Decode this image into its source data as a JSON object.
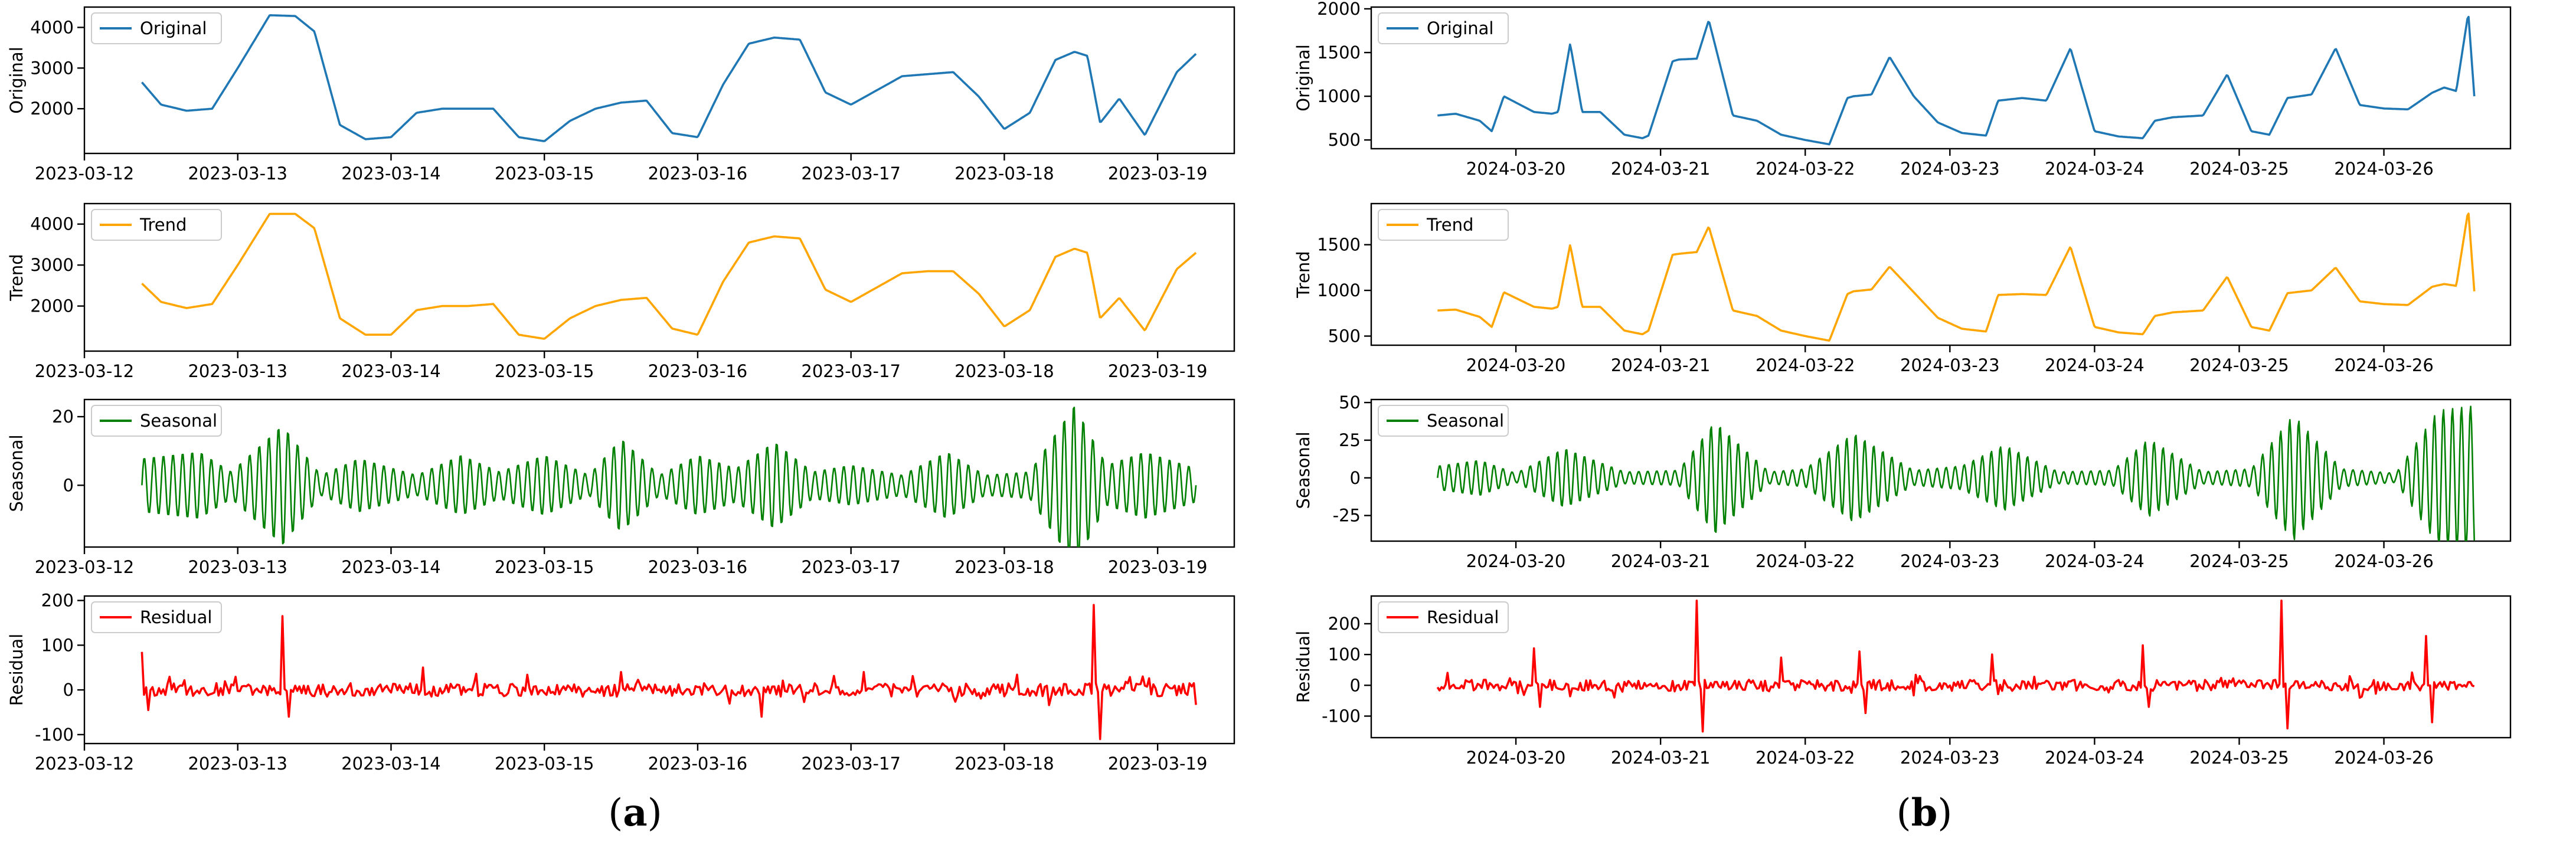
{
  "panels": [
    {
      "label": "a"
    },
    {
      "label": "b"
    }
  ],
  "chart_data": [
    {
      "type": "line",
      "panel": "a",
      "legend": "upper-left",
      "grid": false,
      "title": "",
      "xlabel": "",
      "ylabel": "Original",
      "series_name": "Original",
      "color": "#1f77b4",
      "xlim": [
        "2023-03-12 00:00",
        "2023-03-19 12:00"
      ],
      "ylim": [
        900,
        4500
      ],
      "x_ticks": [
        "2023-03-12",
        "2023-03-13",
        "2023-03-14",
        "2023-03-15",
        "2023-03-16",
        "2023-03-17",
        "2023-03-18",
        "2023-03-19"
      ],
      "y_ticks": [
        2000,
        3000,
        4000
      ],
      "x": [
        "2023-03-12 09:00",
        "2023-03-12 12:00",
        "2023-03-12 16:00",
        "2023-03-12 20:00",
        "2023-03-13 00:00",
        "2023-03-13 05:00",
        "2023-03-13 09:00",
        "2023-03-13 12:00",
        "2023-03-13 16:00",
        "2023-03-13 20:00",
        "2023-03-14 00:00",
        "2023-03-14 04:00",
        "2023-03-14 08:00",
        "2023-03-14 12:00",
        "2023-03-14 16:00",
        "2023-03-14 20:00",
        "2023-03-15 00:00",
        "2023-03-15 04:00",
        "2023-03-15 08:00",
        "2023-03-15 12:00",
        "2023-03-15 16:00",
        "2023-03-15 20:00",
        "2023-03-16 00:00",
        "2023-03-16 04:00",
        "2023-03-16 08:00",
        "2023-03-16 12:00",
        "2023-03-16 16:00",
        "2023-03-16 20:00",
        "2023-03-17 00:00",
        "2023-03-17 04:00",
        "2023-03-17 08:00",
        "2023-03-17 12:00",
        "2023-03-17 16:00",
        "2023-03-17 20:00",
        "2023-03-18 00:00",
        "2023-03-18 04:00",
        "2023-03-18 08:00",
        "2023-03-18 11:00",
        "2023-03-18 13:00",
        "2023-03-18 15:00",
        "2023-03-18 18:00",
        "2023-03-18 22:00",
        "2023-03-19 03:00",
        "2023-03-19 06:00"
      ],
      "values": [
        2650,
        2100,
        1950,
        2000,
        3000,
        4300,
        4280,
        3900,
        1600,
        1250,
        1300,
        1900,
        2000,
        2000,
        2000,
        1300,
        1200,
        1700,
        2000,
        2150,
        2200,
        1400,
        1300,
        2600,
        3600,
        3750,
        3700,
        2400,
        2100,
        2450,
        2800,
        2850,
        2900,
        2300,
        1500,
        1900,
        3200,
        3400,
        3300,
        1650,
        2250,
        1350,
        2900,
        3350
      ]
    },
    {
      "type": "line",
      "panel": "a",
      "legend": "upper-left",
      "grid": false,
      "title": "",
      "xlabel": "",
      "ylabel": "Trend",
      "series_name": "Trend",
      "color": "#ffa500",
      "xlim": [
        "2023-03-12 00:00",
        "2023-03-19 12:00"
      ],
      "ylim": [
        900,
        4500
      ],
      "x_ticks": [
        "2023-03-12",
        "2023-03-13",
        "2023-03-14",
        "2023-03-15",
        "2023-03-16",
        "2023-03-17",
        "2023-03-18",
        "2023-03-19"
      ],
      "y_ticks": [
        2000,
        3000,
        4000
      ],
      "x": [
        "2023-03-12 09:00",
        "2023-03-12 12:00",
        "2023-03-12 16:00",
        "2023-03-12 20:00",
        "2023-03-13 00:00",
        "2023-03-13 05:00",
        "2023-03-13 09:00",
        "2023-03-13 12:00",
        "2023-03-13 16:00",
        "2023-03-13 20:00",
        "2023-03-14 00:00",
        "2023-03-14 04:00",
        "2023-03-14 08:00",
        "2023-03-14 12:00",
        "2023-03-14 16:00",
        "2023-03-14 20:00",
        "2023-03-15 00:00",
        "2023-03-15 04:00",
        "2023-03-15 08:00",
        "2023-03-15 12:00",
        "2023-03-15 16:00",
        "2023-03-15 20:00",
        "2023-03-16 00:00",
        "2023-03-16 04:00",
        "2023-03-16 08:00",
        "2023-03-16 12:00",
        "2023-03-16 16:00",
        "2023-03-16 20:00",
        "2023-03-17 00:00",
        "2023-03-17 04:00",
        "2023-03-17 08:00",
        "2023-03-17 12:00",
        "2023-03-17 16:00",
        "2023-03-17 20:00",
        "2023-03-18 00:00",
        "2023-03-18 04:00",
        "2023-03-18 08:00",
        "2023-03-18 11:00",
        "2023-03-18 13:00",
        "2023-03-18 15:00",
        "2023-03-18 18:00",
        "2023-03-18 22:00",
        "2023-03-19 03:00",
        "2023-03-19 06:00"
      ],
      "values": [
        2550,
        2100,
        1950,
        2050,
        3000,
        4250,
        4250,
        3900,
        1700,
        1300,
        1300,
        1900,
        2000,
        2000,
        2050,
        1300,
        1200,
        1700,
        2000,
        2150,
        2200,
        1450,
        1300,
        2600,
        3550,
        3700,
        3650,
        2400,
        2100,
        2450,
        2800,
        2850,
        2850,
        2300,
        1500,
        1900,
        3200,
        3400,
        3300,
        1700,
        2200,
        1400,
        2900,
        3300
      ]
    },
    {
      "type": "line",
      "panel": "a",
      "legend": "upper-left",
      "grid": false,
      "style": "oscillation",
      "title": "",
      "xlabel": "",
      "ylabel": "Seasonal",
      "series_name": "Seasonal",
      "color": "#008000",
      "xlim": [
        "2023-03-12 00:00",
        "2023-03-19 12:00"
      ],
      "ylim": [
        -18,
        25
      ],
      "x_ticks": [
        "2023-03-12",
        "2023-03-13",
        "2023-03-14",
        "2023-03-15",
        "2023-03-16",
        "2023-03-17",
        "2023-03-18",
        "2023-03-19"
      ],
      "y_ticks": [
        0,
        20
      ],
      "cycle_hours": 1.5,
      "x": [
        "2023-03-12 09:00",
        "2023-03-12 18:00",
        "2023-03-12 23:00",
        "2023-03-13 07:00",
        "2023-03-13 13:00",
        "2023-03-13 19:00",
        "2023-03-14 04:00",
        "2023-03-14 11:00",
        "2023-03-14 17:00",
        "2023-03-15 00:00",
        "2023-03-15 07:00",
        "2023-03-15 12:00",
        "2023-03-15 18:00",
        "2023-03-16 00:00",
        "2023-03-16 06:00",
        "2023-03-16 12:00",
        "2023-03-16 18:00",
        "2023-03-17 00:00",
        "2023-03-17 08:00",
        "2023-03-17 15:00",
        "2023-03-17 21:00",
        "2023-03-18 04:00",
        "2023-03-18 11:00",
        "2023-03-18 16:00",
        "2023-03-18 22:00",
        "2023-03-19 06:00"
      ],
      "amplitudes": [
        8,
        10,
        4,
        18,
        3,
        8,
        3,
        9,
        4,
        9,
        3,
        14,
        3,
        9,
        5,
        13,
        4,
        6,
        3,
        10,
        3,
        4,
        24,
        6,
        10,
        5
      ]
    },
    {
      "type": "line",
      "panel": "a",
      "legend": "upper-left",
      "grid": false,
      "style": "noise",
      "title": "",
      "xlabel": "",
      "ylabel": "Residual",
      "series_name": "Residual",
      "color": "#ff0000",
      "xlim": [
        "2023-03-12 00:00",
        "2023-03-19 12:00"
      ],
      "ylim": [
        -120,
        210
      ],
      "x_ticks": [
        "2023-03-12",
        "2023-03-13",
        "2023-03-14",
        "2023-03-15",
        "2023-03-16",
        "2023-03-17",
        "2023-03-18",
        "2023-03-19"
      ],
      "y_ticks": [
        -100,
        0,
        100,
        200
      ],
      "x_range": [
        "2023-03-12 09:00",
        "2023-03-19 06:00"
      ],
      "noise_amplitude": 15,
      "spikes": [
        {
          "x": "2023-03-12 09:00",
          "value": 85
        },
        {
          "x": "2023-03-12 10:00",
          "value": -45
        },
        {
          "x": "2023-03-13 07:00",
          "value": 165
        },
        {
          "x": "2023-03-13 08:00",
          "value": -60
        },
        {
          "x": "2023-03-14 05:00",
          "value": 50
        },
        {
          "x": "2023-03-15 12:00",
          "value": 40
        },
        {
          "x": "2023-03-16 10:00",
          "value": -60
        },
        {
          "x": "2023-03-17 02:00",
          "value": 40
        },
        {
          "x": "2023-03-18 14:00",
          "value": 190
        },
        {
          "x": "2023-03-18 15:00",
          "value": -110
        }
      ]
    },
    {
      "type": "line",
      "panel": "b",
      "legend": "upper-left",
      "grid": false,
      "title": "",
      "xlabel": "",
      "ylabel": "Original",
      "series_name": "Original",
      "color": "#1f77b4",
      "xlim": [
        "2024-03-19 00:00",
        "2024-03-26 21:00"
      ],
      "ylim": [
        400,
        2020
      ],
      "x_ticks": [
        "2024-03-20",
        "2024-03-21",
        "2024-03-22",
        "2024-03-23",
        "2024-03-24",
        "2024-03-25",
        "2024-03-26"
      ],
      "y_ticks": [
        500,
        1000,
        1500,
        2000
      ],
      "x": [
        "2024-03-19 11:00",
        "2024-03-19 14:00",
        "2024-03-19 18:00",
        "2024-03-19 20:00",
        "2024-03-19 22:00",
        "2024-03-20 03:00",
        "2024-03-20 06:00",
        "2024-03-20 07:00",
        "2024-03-20 09:00",
        "2024-03-20 11:00",
        "2024-03-20 14:00",
        "2024-03-20 18:00",
        "2024-03-20 21:00",
        "2024-03-20 22:00",
        "2024-03-21 02:00",
        "2024-03-21 03:00",
        "2024-03-21 06:00",
        "2024-03-21 08:00",
        "2024-03-21 12:00",
        "2024-03-21 16:00",
        "2024-03-21 20:00",
        "2024-03-22 00:00",
        "2024-03-22 04:00",
        "2024-03-22 07:00",
        "2024-03-22 08:00",
        "2024-03-22 11:00",
        "2024-03-22 14:00",
        "2024-03-22 18:00",
        "2024-03-22 22:00",
        "2024-03-23 02:00",
        "2024-03-23 06:00",
        "2024-03-23 08:00",
        "2024-03-23 12:00",
        "2024-03-23 16:00",
        "2024-03-23 20:00",
        "2024-03-24 00:00",
        "2024-03-24 04:00",
        "2024-03-24 08:00",
        "2024-03-24 10:00",
        "2024-03-24 13:00",
        "2024-03-24 18:00",
        "2024-03-24 22:00",
        "2024-03-25 02:00",
        "2024-03-25 05:00",
        "2024-03-25 08:00",
        "2024-03-25 12:00",
        "2024-03-25 16:00",
        "2024-03-25 20:00",
        "2024-03-26 00:00",
        "2024-03-26 04:00",
        "2024-03-26 08:00",
        "2024-03-26 10:00",
        "2024-03-26 12:00",
        "2024-03-26 14:00",
        "2024-03-26 15:00"
      ],
      "values": [
        780,
        800,
        720,
        600,
        1000,
        820,
        800,
        820,
        1600,
        820,
        820,
        560,
        520,
        550,
        1400,
        1420,
        1430,
        1870,
        780,
        720,
        560,
        500,
        450,
        980,
        1000,
        1020,
        1450,
        1000,
        700,
        580,
        550,
        950,
        980,
        950,
        1550,
        600,
        540,
        520,
        720,
        760,
        780,
        1250,
        600,
        560,
        980,
        1020,
        1550,
        900,
        860,
        850,
        1040,
        1100,
        1060,
        1950,
        1000
      ]
    },
    {
      "type": "line",
      "panel": "b",
      "legend": "upper-left",
      "grid": false,
      "title": "",
      "xlabel": "",
      "ylabel": "Trend",
      "series_name": "Trend",
      "color": "#ffa500",
      "xlim": [
        "2024-03-19 00:00",
        "2024-03-26 21:00"
      ],
      "ylim": [
        400,
        1950
      ],
      "x_ticks": [
        "2024-03-20",
        "2024-03-21",
        "2024-03-22",
        "2024-03-23",
        "2024-03-24",
        "2024-03-25",
        "2024-03-26"
      ],
      "y_ticks": [
        500,
        1000,
        1500
      ],
      "x": [
        "2024-03-19 11:00",
        "2024-03-19 14:00",
        "2024-03-19 18:00",
        "2024-03-19 20:00",
        "2024-03-19 22:00",
        "2024-03-20 03:00",
        "2024-03-20 06:00",
        "2024-03-20 07:00",
        "2024-03-20 09:00",
        "2024-03-20 11:00",
        "2024-03-20 14:00",
        "2024-03-20 18:00",
        "2024-03-20 21:00",
        "2024-03-20 22:00",
        "2024-03-21 02:00",
        "2024-03-21 03:00",
        "2024-03-21 06:00",
        "2024-03-21 08:00",
        "2024-03-21 12:00",
        "2024-03-21 16:00",
        "2024-03-21 20:00",
        "2024-03-22 00:00",
        "2024-03-22 04:00",
        "2024-03-22 07:00",
        "2024-03-22 08:00",
        "2024-03-22 11:00",
        "2024-03-22 14:00",
        "2024-03-22 18:00",
        "2024-03-22 22:00",
        "2024-03-23 02:00",
        "2024-03-23 06:00",
        "2024-03-23 08:00",
        "2024-03-23 12:00",
        "2024-03-23 16:00",
        "2024-03-23 20:00",
        "2024-03-24 00:00",
        "2024-03-24 04:00",
        "2024-03-24 08:00",
        "2024-03-24 10:00",
        "2024-03-24 13:00",
        "2024-03-24 18:00",
        "2024-03-24 22:00",
        "2024-03-25 02:00",
        "2024-03-25 05:00",
        "2024-03-25 08:00",
        "2024-03-25 12:00",
        "2024-03-25 16:00",
        "2024-03-25 20:00",
        "2024-03-26 00:00",
        "2024-03-26 04:00",
        "2024-03-26 08:00",
        "2024-03-26 10:00",
        "2024-03-26 12:00",
        "2024-03-26 14:00",
        "2024-03-26 15:00"
      ],
      "values": [
        780,
        790,
        710,
        600,
        980,
        820,
        800,
        820,
        1500,
        820,
        820,
        560,
        520,
        560,
        1390,
        1400,
        1420,
        1700,
        780,
        720,
        560,
        500,
        450,
        960,
        990,
        1010,
        1260,
        980,
        700,
        580,
        550,
        950,
        960,
        950,
        1480,
        600,
        540,
        520,
        720,
        760,
        780,
        1150,
        600,
        560,
        970,
        1000,
        1250,
        880,
        850,
        840,
        1040,
        1070,
        1050,
        1880,
        990
      ]
    },
    {
      "type": "line",
      "panel": "b",
      "legend": "upper-left",
      "grid": false,
      "style": "oscillation",
      "title": "",
      "xlabel": "",
      "ylabel": "Seasonal",
      "series_name": "Seasonal",
      "color": "#008000",
      "xlim": [
        "2024-03-19 00:00",
        "2024-03-26 21:00"
      ],
      "ylim": [
        -42,
        52
      ],
      "x_ticks": [
        "2024-03-20",
        "2024-03-21",
        "2024-03-22",
        "2024-03-23",
        "2024-03-24",
        "2024-03-25",
        "2024-03-26"
      ],
      "y_ticks": [
        -25,
        0,
        25,
        50
      ],
      "cycle_hours": 1.5,
      "x": [
        "2024-03-19 11:00",
        "2024-03-19 18:00",
        "2024-03-20 00:00",
        "2024-03-20 08:00",
        "2024-03-20 18:00",
        "2024-03-21 03:00",
        "2024-03-21 09:00",
        "2024-03-21 18:00",
        "2024-03-22 00:00",
        "2024-03-22 08:00",
        "2024-03-22 18:00",
        "2024-03-23 02:00",
        "2024-03-23 09:00",
        "2024-03-23 18:00",
        "2024-03-24 03:00",
        "2024-03-24 09:00",
        "2024-03-24 18:00",
        "2024-03-25 02:00",
        "2024-03-25 09:00",
        "2024-03-25 17:00",
        "2024-03-26 02:00",
        "2024-03-26 09:00",
        "2024-03-26 15:00"
      ],
      "amplitudes": [
        8,
        12,
        3,
        20,
        4,
        5,
        38,
        4,
        6,
        30,
        5,
        8,
        22,
        4,
        5,
        26,
        4,
        6,
        42,
        6,
        3,
        45,
        48
      ]
    },
    {
      "type": "line",
      "panel": "b",
      "legend": "upper-left",
      "grid": false,
      "style": "noise",
      "title": "",
      "xlabel": "",
      "ylabel": "Residual",
      "series_name": "Residual",
      "color": "#ff0000",
      "xlim": [
        "2024-03-19 00:00",
        "2024-03-26 21:00"
      ],
      "ylim": [
        -170,
        290
      ],
      "x_ticks": [
        "2024-03-20",
        "2024-03-21",
        "2024-03-22",
        "2024-03-23",
        "2024-03-24",
        "2024-03-25",
        "2024-03-26"
      ],
      "y_ticks": [
        -100,
        0,
        100,
        200
      ],
      "x_range": [
        "2024-03-19 11:00",
        "2024-03-26 15:00"
      ],
      "noise_amplitude": 18,
      "spikes": [
        {
          "x": "2024-03-20 03:00",
          "value": 120
        },
        {
          "x": "2024-03-20 04:00",
          "value": -70
        },
        {
          "x": "2024-03-21 06:00",
          "value": 275
        },
        {
          "x": "2024-03-21 07:00",
          "value": -150
        },
        {
          "x": "2024-03-21 20:00",
          "value": 90
        },
        {
          "x": "2024-03-22 09:00",
          "value": 110
        },
        {
          "x": "2024-03-22 10:00",
          "value": -90
        },
        {
          "x": "2024-03-23 07:00",
          "value": 100
        },
        {
          "x": "2024-03-24 08:00",
          "value": 130
        },
        {
          "x": "2024-03-24 09:00",
          "value": -70
        },
        {
          "x": "2024-03-25 07:00",
          "value": 275
        },
        {
          "x": "2024-03-25 08:00",
          "value": -140
        },
        {
          "x": "2024-03-26 07:00",
          "value": 160
        },
        {
          "x": "2024-03-26 08:00",
          "value": -120
        }
      ]
    }
  ]
}
